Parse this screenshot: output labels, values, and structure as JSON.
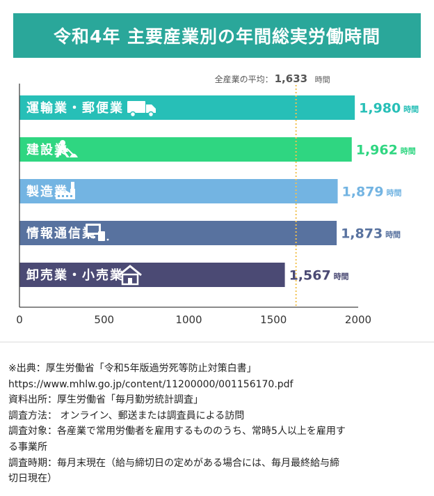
{
  "header": {
    "title": "令和4年 主要産業別の年間総実労働時間",
    "background_color": "#2aa79a"
  },
  "chart_data": {
    "type": "bar",
    "orientation": "horizontal",
    "title": "令和4年 主要産業別の年間総実労働時間",
    "xlabel": "",
    "ylabel": "",
    "xlim": [
      0,
      2000
    ],
    "x_ticks": [
      "0",
      "500",
      "1000",
      "1500",
      "2000"
    ],
    "unit": "時間",
    "grid": false,
    "categories": [
      "運輸業・郵便業",
      "建設業",
      "製造業",
      "情報通信業",
      "卸売業・小売業"
    ],
    "values": [
      1980,
      1962,
      1879,
      1873,
      1567
    ],
    "value_labels": [
      "1,980",
      "1,962",
      "1,879",
      "1,873",
      "1,567"
    ],
    "colors": [
      "#27bfb7",
      "#2fd681",
      "#73b4e2",
      "#58729f",
      "#4b4a74"
    ],
    "icons": [
      "truck-icon",
      "construction-worker-icon",
      "factory-icon",
      "computer-icon",
      "house-icon"
    ],
    "reference_line": {
      "label": "全産業の平均：",
      "value": 1633,
      "value_label": "1,633",
      "unit": "時間",
      "color": "#f2c14e",
      "style": "dotted"
    }
  },
  "notes": [
    "※出典：厚生労働省「令和5年版過労死等防止対策白書」",
    "https://www.mhlw.go.jp/content/11200000/001156170.pdf",
    "資料出所：厚生労働省「毎月勤労統計調査」",
    "調査方法： オンライン、郵送または調査員による訪問",
    "調査対象：各産業で常用労働者を雇用するもののうち、常時5人以上を雇用す",
    "る事業所",
    "調査時期：毎月末現在（給与締切日の定めがある場合には、毎月最終給与締",
    "切日現在）"
  ]
}
